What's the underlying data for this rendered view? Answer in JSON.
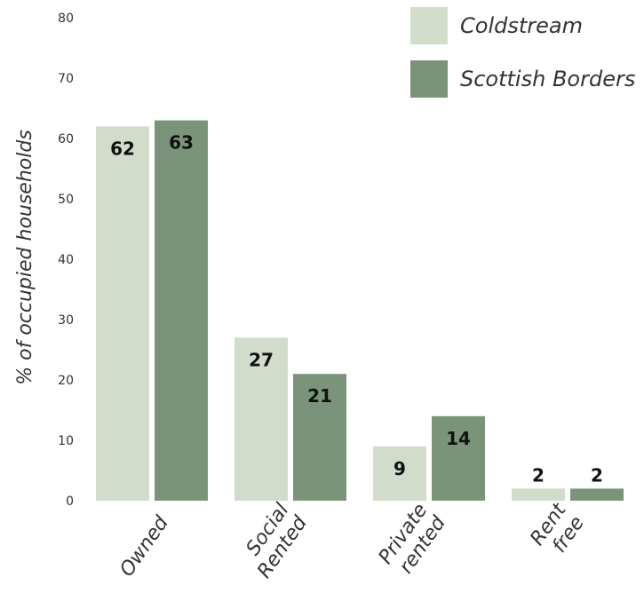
{
  "chart_data": {
    "type": "bar",
    "categories": [
      [
        "Owned"
      ],
      [
        "Social",
        "Rented"
      ],
      [
        "Private",
        "rented"
      ],
      [
        "Rent",
        "free"
      ]
    ],
    "series": [
      {
        "name": "Coldstream",
        "values": [
          62,
          27,
          9,
          2
        ],
        "color": "#d2dccb"
      },
      {
        "name": "Scottish Borders",
        "values": [
          63,
          21,
          14,
          2
        ],
        "color": "#7a9479"
      }
    ],
    "ylabel": "% of occupied households",
    "ylim": [
      0,
      80
    ],
    "yticks": [
      0,
      10,
      20,
      30,
      40,
      50,
      60,
      70,
      80
    ],
    "grid": false,
    "legend_position": "top-right"
  }
}
